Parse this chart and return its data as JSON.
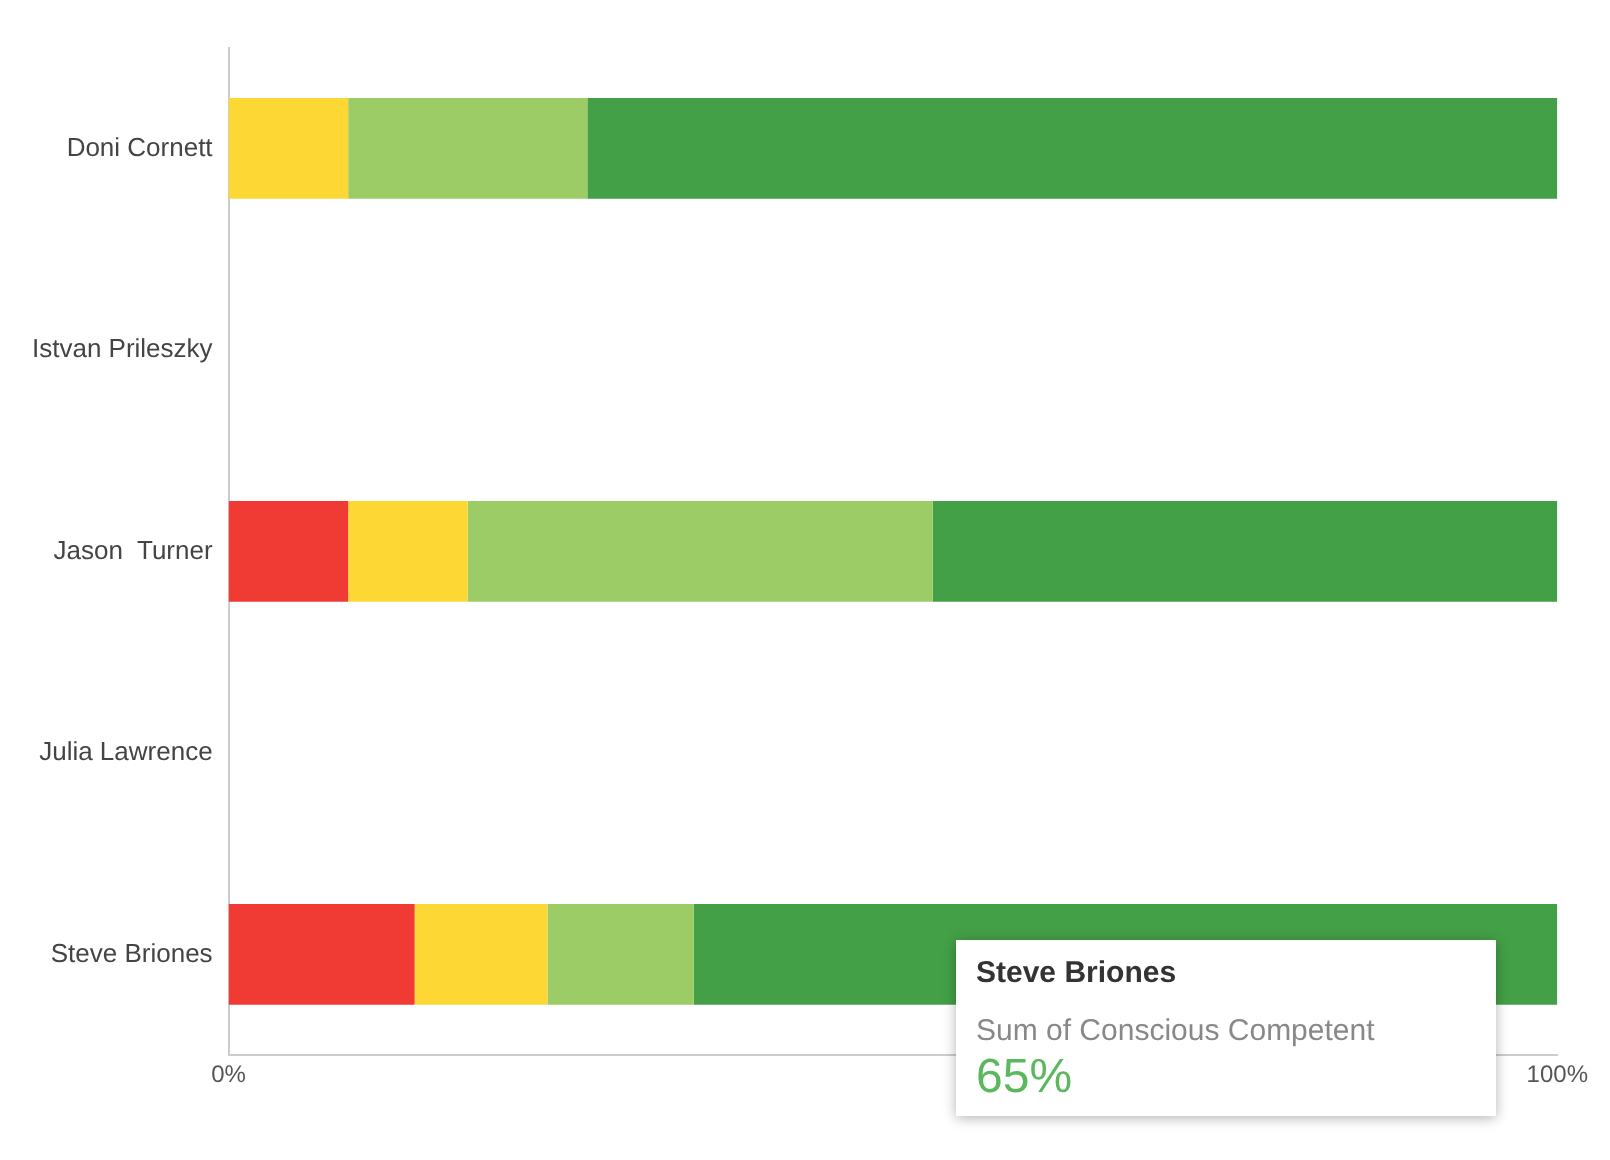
{
  "chart_data": {
    "type": "bar",
    "orientation": "horizontal",
    "stacked": true,
    "categories": [
      "Doni Cornett",
      "Istvan Prileszky",
      "Jason  Turner",
      "Julia Lawrence",
      "Steve Briones"
    ],
    "series": [
      {
        "color": "#ef3b33",
        "values": [
          null,
          null,
          9,
          null,
          14
        ]
      },
      {
        "color": "#fdd835",
        "values": [
          9,
          null,
          9,
          null,
          10
        ]
      },
      {
        "color": "#9ccc65",
        "values": [
          18,
          null,
          35,
          null,
          11
        ]
      },
      {
        "color": "#43a047",
        "values": [
          73,
          null,
          47,
          null,
          65
        ]
      }
    ],
    "xlim": [
      0,
      100
    ],
    "xticks": [
      {
        "value": 0,
        "label": "0%"
      },
      {
        "value": 100,
        "label": "100%"
      }
    ],
    "grid": false,
    "legend": false,
    "annotations": [
      "Steve Briones",
      "Sum of Conscious Competent",
      "65%"
    ]
  }
}
